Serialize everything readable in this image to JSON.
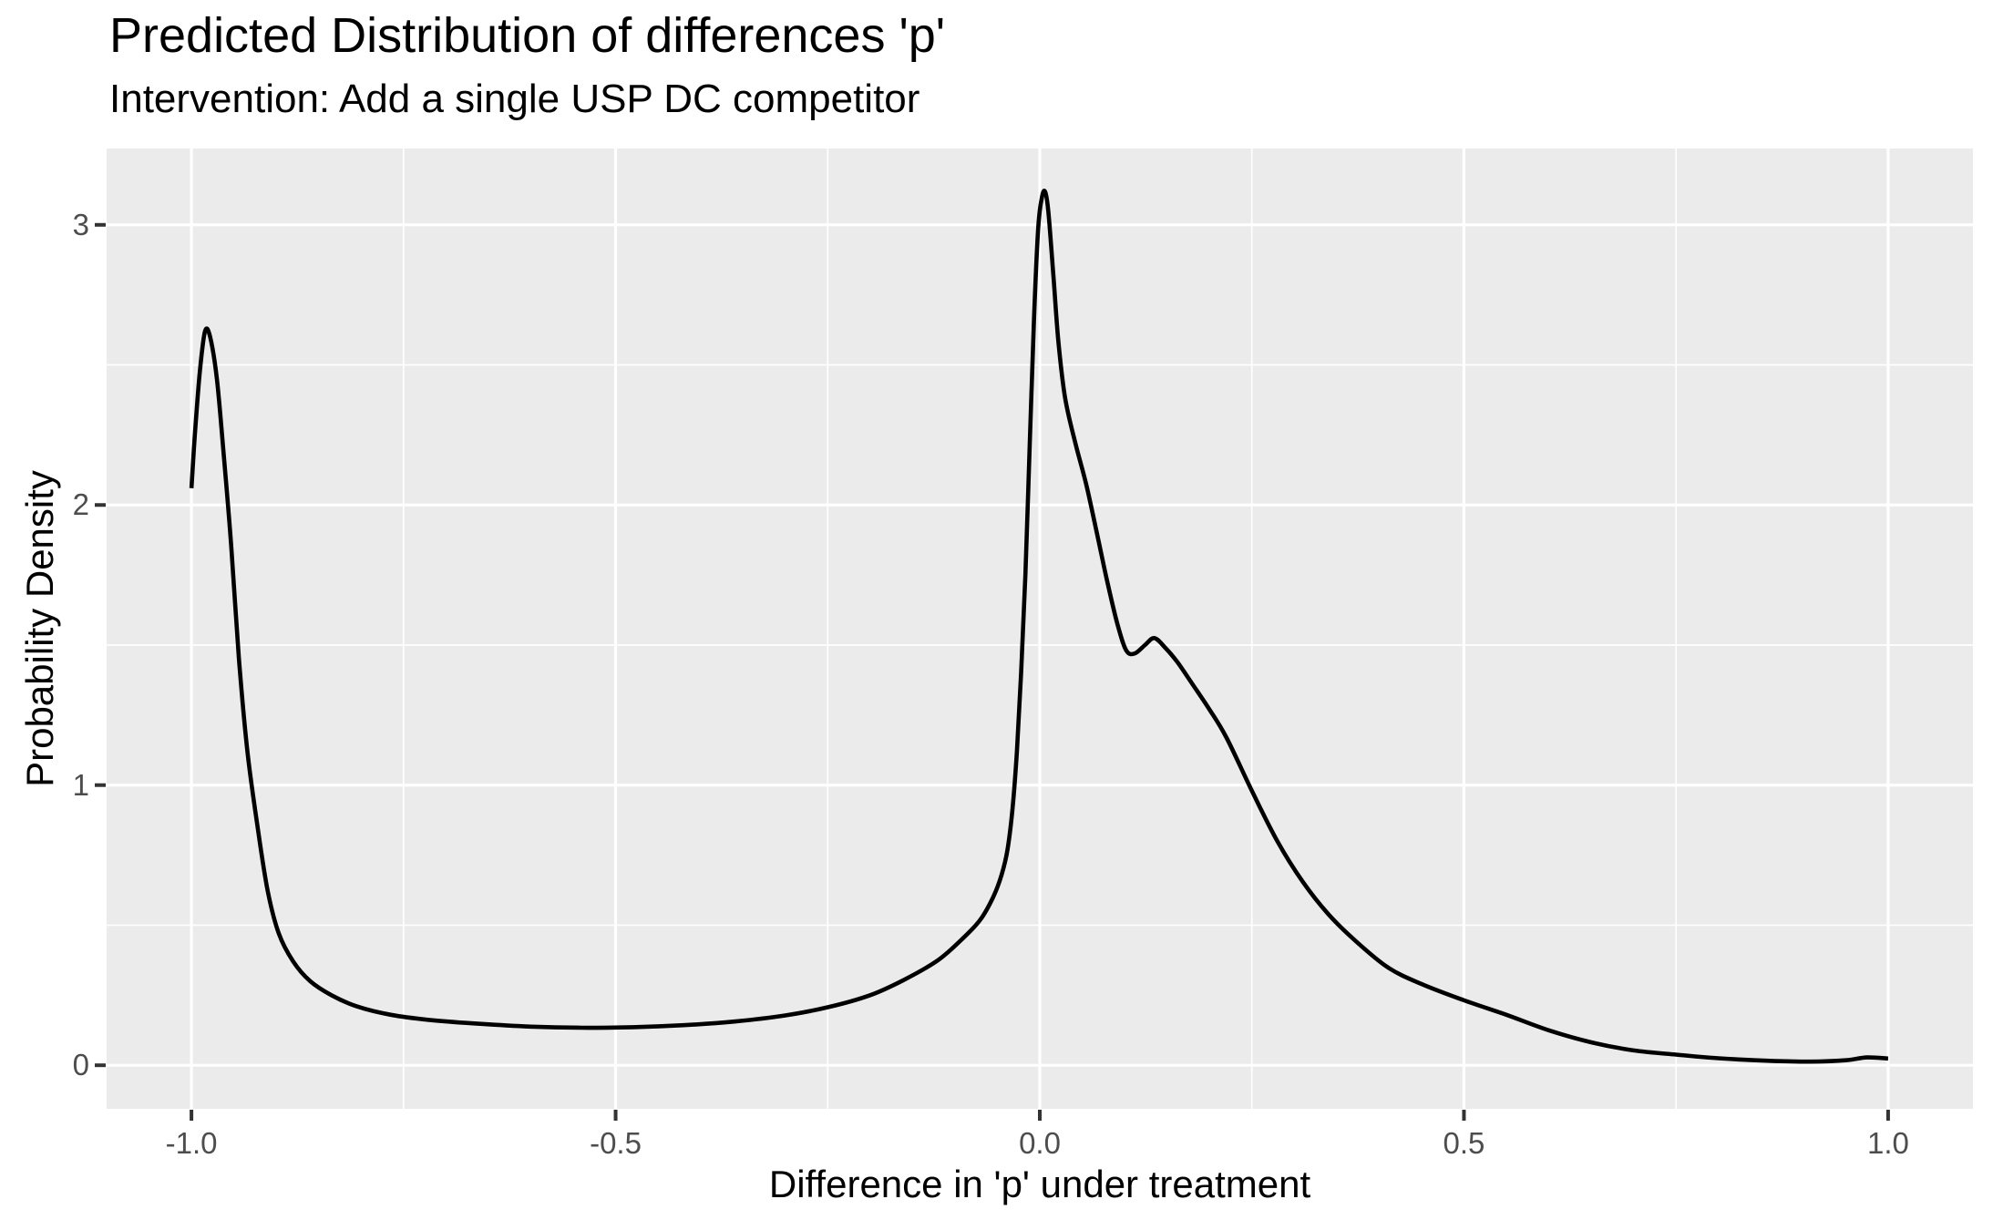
{
  "chart_data": {
    "type": "line",
    "subtype": "density-curve",
    "title": "Predicted Distribution of differences 'p'",
    "subtitle": "Intervention: Add a single USP DC competitor",
    "xlabel": "Difference in 'p' under treatment",
    "ylabel": "Probability Density",
    "xlim": [
      -1.1,
      1.1
    ],
    "ylim": [
      -0.1555,
      3.2725
    ],
    "grid": true,
    "legend_position": "none",
    "x_ticks": {
      "values": [
        -1.0,
        -0.5,
        0.0,
        0.5,
        1.0
      ],
      "labels": [
        "-1.0",
        "-0.5",
        "0.0",
        "0.5",
        "1.0"
      ]
    },
    "y_ticks": {
      "values": [
        0,
        1,
        2,
        3
      ],
      "labels": [
        "0",
        "1",
        "2",
        "3"
      ]
    },
    "x_minor_ticks": [
      -0.75,
      -0.25,
      0.25,
      0.75
    ],
    "y_minor_ticks": [
      0.5,
      1.5,
      2.5
    ],
    "series": [
      {
        "name": "predicted-density",
        "x": [
          -1.0,
          -0.996,
          -0.99,
          -0.984,
          -0.978,
          -0.97,
          -0.962,
          -0.953,
          -0.944,
          -0.934,
          -0.922,
          -0.91,
          -0.897,
          -0.88,
          -0.86,
          -0.835,
          -0.805,
          -0.765,
          -0.72,
          -0.66,
          -0.6,
          -0.54,
          -0.48,
          -0.42,
          -0.36,
          -0.3,
          -0.25,
          -0.2,
          -0.16,
          -0.12,
          -0.09,
          -0.07,
          -0.055,
          -0.045,
          -0.038,
          -0.032,
          -0.027,
          -0.022,
          -0.017,
          -0.012,
          -0.007,
          -0.002,
          0.002,
          0.006,
          0.01,
          0.016,
          0.022,
          0.03,
          0.042,
          0.055,
          0.068,
          0.08,
          0.092,
          0.102,
          0.112,
          0.124,
          0.135,
          0.148,
          0.162,
          0.18,
          0.2,
          0.22,
          0.25,
          0.28,
          0.31,
          0.34,
          0.37,
          0.41,
          0.45,
          0.5,
          0.55,
          0.6,
          0.65,
          0.7,
          0.75,
          0.8,
          0.86,
          0.91,
          0.95,
          0.975,
          1.0
        ],
        "y": [
          2.06,
          2.25,
          2.48,
          2.62,
          2.6,
          2.45,
          2.18,
          1.85,
          1.45,
          1.12,
          0.85,
          0.62,
          0.47,
          0.37,
          0.3,
          0.25,
          0.21,
          0.18,
          0.162,
          0.148,
          0.138,
          0.134,
          0.136,
          0.143,
          0.156,
          0.178,
          0.207,
          0.25,
          0.305,
          0.375,
          0.455,
          0.52,
          0.6,
          0.68,
          0.77,
          0.92,
          1.12,
          1.4,
          1.75,
          2.2,
          2.65,
          2.98,
          3.09,
          3.12,
          3.05,
          2.82,
          2.58,
          2.38,
          2.22,
          2.07,
          1.89,
          1.72,
          1.57,
          1.48,
          1.47,
          1.5,
          1.525,
          1.49,
          1.44,
          1.36,
          1.27,
          1.17,
          0.98,
          0.8,
          0.655,
          0.54,
          0.45,
          0.35,
          0.29,
          0.232,
          0.18,
          0.125,
          0.082,
          0.053,
          0.038,
          0.025,
          0.016,
          0.013,
          0.018,
          0.028,
          0.024
        ]
      }
    ],
    "annotations": {
      "left_peak": {
        "x": -0.984,
        "y": 2.62
      },
      "main_peak": {
        "x": 0.006,
        "y": 3.12
      },
      "shoulder_bump": {
        "x": 0.135,
        "y": 1.52
      }
    }
  },
  "style": {
    "background": "#FFFFFF",
    "panel_background": "#EBEBEB",
    "gridline_color": "#FFFFFF",
    "curve_color": "#000000",
    "tick_mark_color": "#333333",
    "tick_label_color": "#4D4D4D",
    "axis_title_color": "#000000",
    "title_color": "#000000"
  }
}
